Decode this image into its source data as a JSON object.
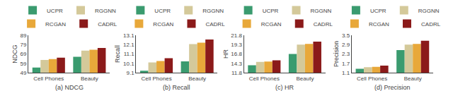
{
  "chart_data": [
    {
      "type": "bar",
      "subtitle": "(a) NDCG",
      "ylabel": "NDCG",
      "categories": [
        "Cell Phones",
        "Beauty"
      ],
      "series": [
        {
          "name": "UCPR",
          "color": "#3a9b6f",
          "values": [
            54.5,
            66.0
          ]
        },
        {
          "name": "RGGNN",
          "color": "#d4c99a",
          "values": [
            62.5,
            72.5
          ]
        },
        {
          "name": "RCGAN",
          "color": "#e8a83a",
          "values": [
            63.5,
            73.5
          ]
        },
        {
          "name": "CADRL",
          "color": "#8b1a1a",
          "values": [
            65.0,
            75.5
          ]
        }
      ],
      "ylim": [
        49,
        89
      ],
      "yticks": [
        49,
        59,
        69,
        79,
        89
      ],
      "grid": false,
      "legend": "top"
    },
    {
      "type": "bar",
      "subtitle": "(b) Recall",
      "ylabel": "Recall",
      "categories": [
        "Cell Phones",
        "Beauty"
      ],
      "series": [
        {
          "name": "UCPR",
          "color": "#3a9b6f",
          "values": [
            9.3,
            10.3
          ]
        },
        {
          "name": "RGGNN",
          "color": "#d4c99a",
          "values": [
            10.2,
            12.15
          ]
        },
        {
          "name": "RCGAN",
          "color": "#e8a83a",
          "values": [
            10.35,
            12.3
          ]
        },
        {
          "name": "CADRL",
          "color": "#8b1a1a",
          "values": [
            10.65,
            12.65
          ]
        }
      ],
      "ylim": [
        9.1,
        13.1
      ],
      "yticks": [
        9.1,
        10.1,
        11.1,
        12.1,
        13.1
      ],
      "grid": false,
      "legend": "top"
    },
    {
      "type": "bar",
      "subtitle": "(c) HR",
      "ylabel": "HR",
      "categories": [
        "Cell Phones",
        "Beauty"
      ],
      "series": [
        {
          "name": "UCPR",
          "color": "#3a9b6f",
          "values": [
            13.8,
            16.8
          ]
        },
        {
          "name": "RGGNN",
          "color": "#d4c99a",
          "values": [
            14.7,
            19.3
          ]
        },
        {
          "name": "RCGAN",
          "color": "#e8a83a",
          "values": [
            14.75,
            19.5
          ]
        },
        {
          "name": "CADRL",
          "color": "#8b1a1a",
          "values": [
            15.1,
            20.1
          ]
        }
      ],
      "ylim": [
        11.8,
        21.8
      ],
      "yticks": [
        11.8,
        14.3,
        16.8,
        19.3,
        21.8
      ],
      "grid": false,
      "legend": "top"
    },
    {
      "type": "bar",
      "subtitle": "(d) Precision",
      "ylabel": "Precision",
      "categories": [
        "Cell Phones",
        "Beauty"
      ],
      "series": [
        {
          "name": "UCPR",
          "color": "#3a9b6f",
          "values": [
            1.35,
            2.55
          ]
        },
        {
          "name": "RGGNN",
          "color": "#d4c99a",
          "values": [
            1.45,
            2.9
          ]
        },
        {
          "name": "RCGAN",
          "color": "#e8a83a",
          "values": [
            1.47,
            2.95
          ]
        },
        {
          "name": "CADRL",
          "color": "#8b1a1a",
          "values": [
            1.55,
            3.15
          ]
        }
      ],
      "ylim": [
        1.1,
        3.5
      ],
      "yticks": [
        1.1,
        1.7,
        2.3,
        2.9,
        3.5
      ],
      "grid": false,
      "legend": "top"
    }
  ]
}
